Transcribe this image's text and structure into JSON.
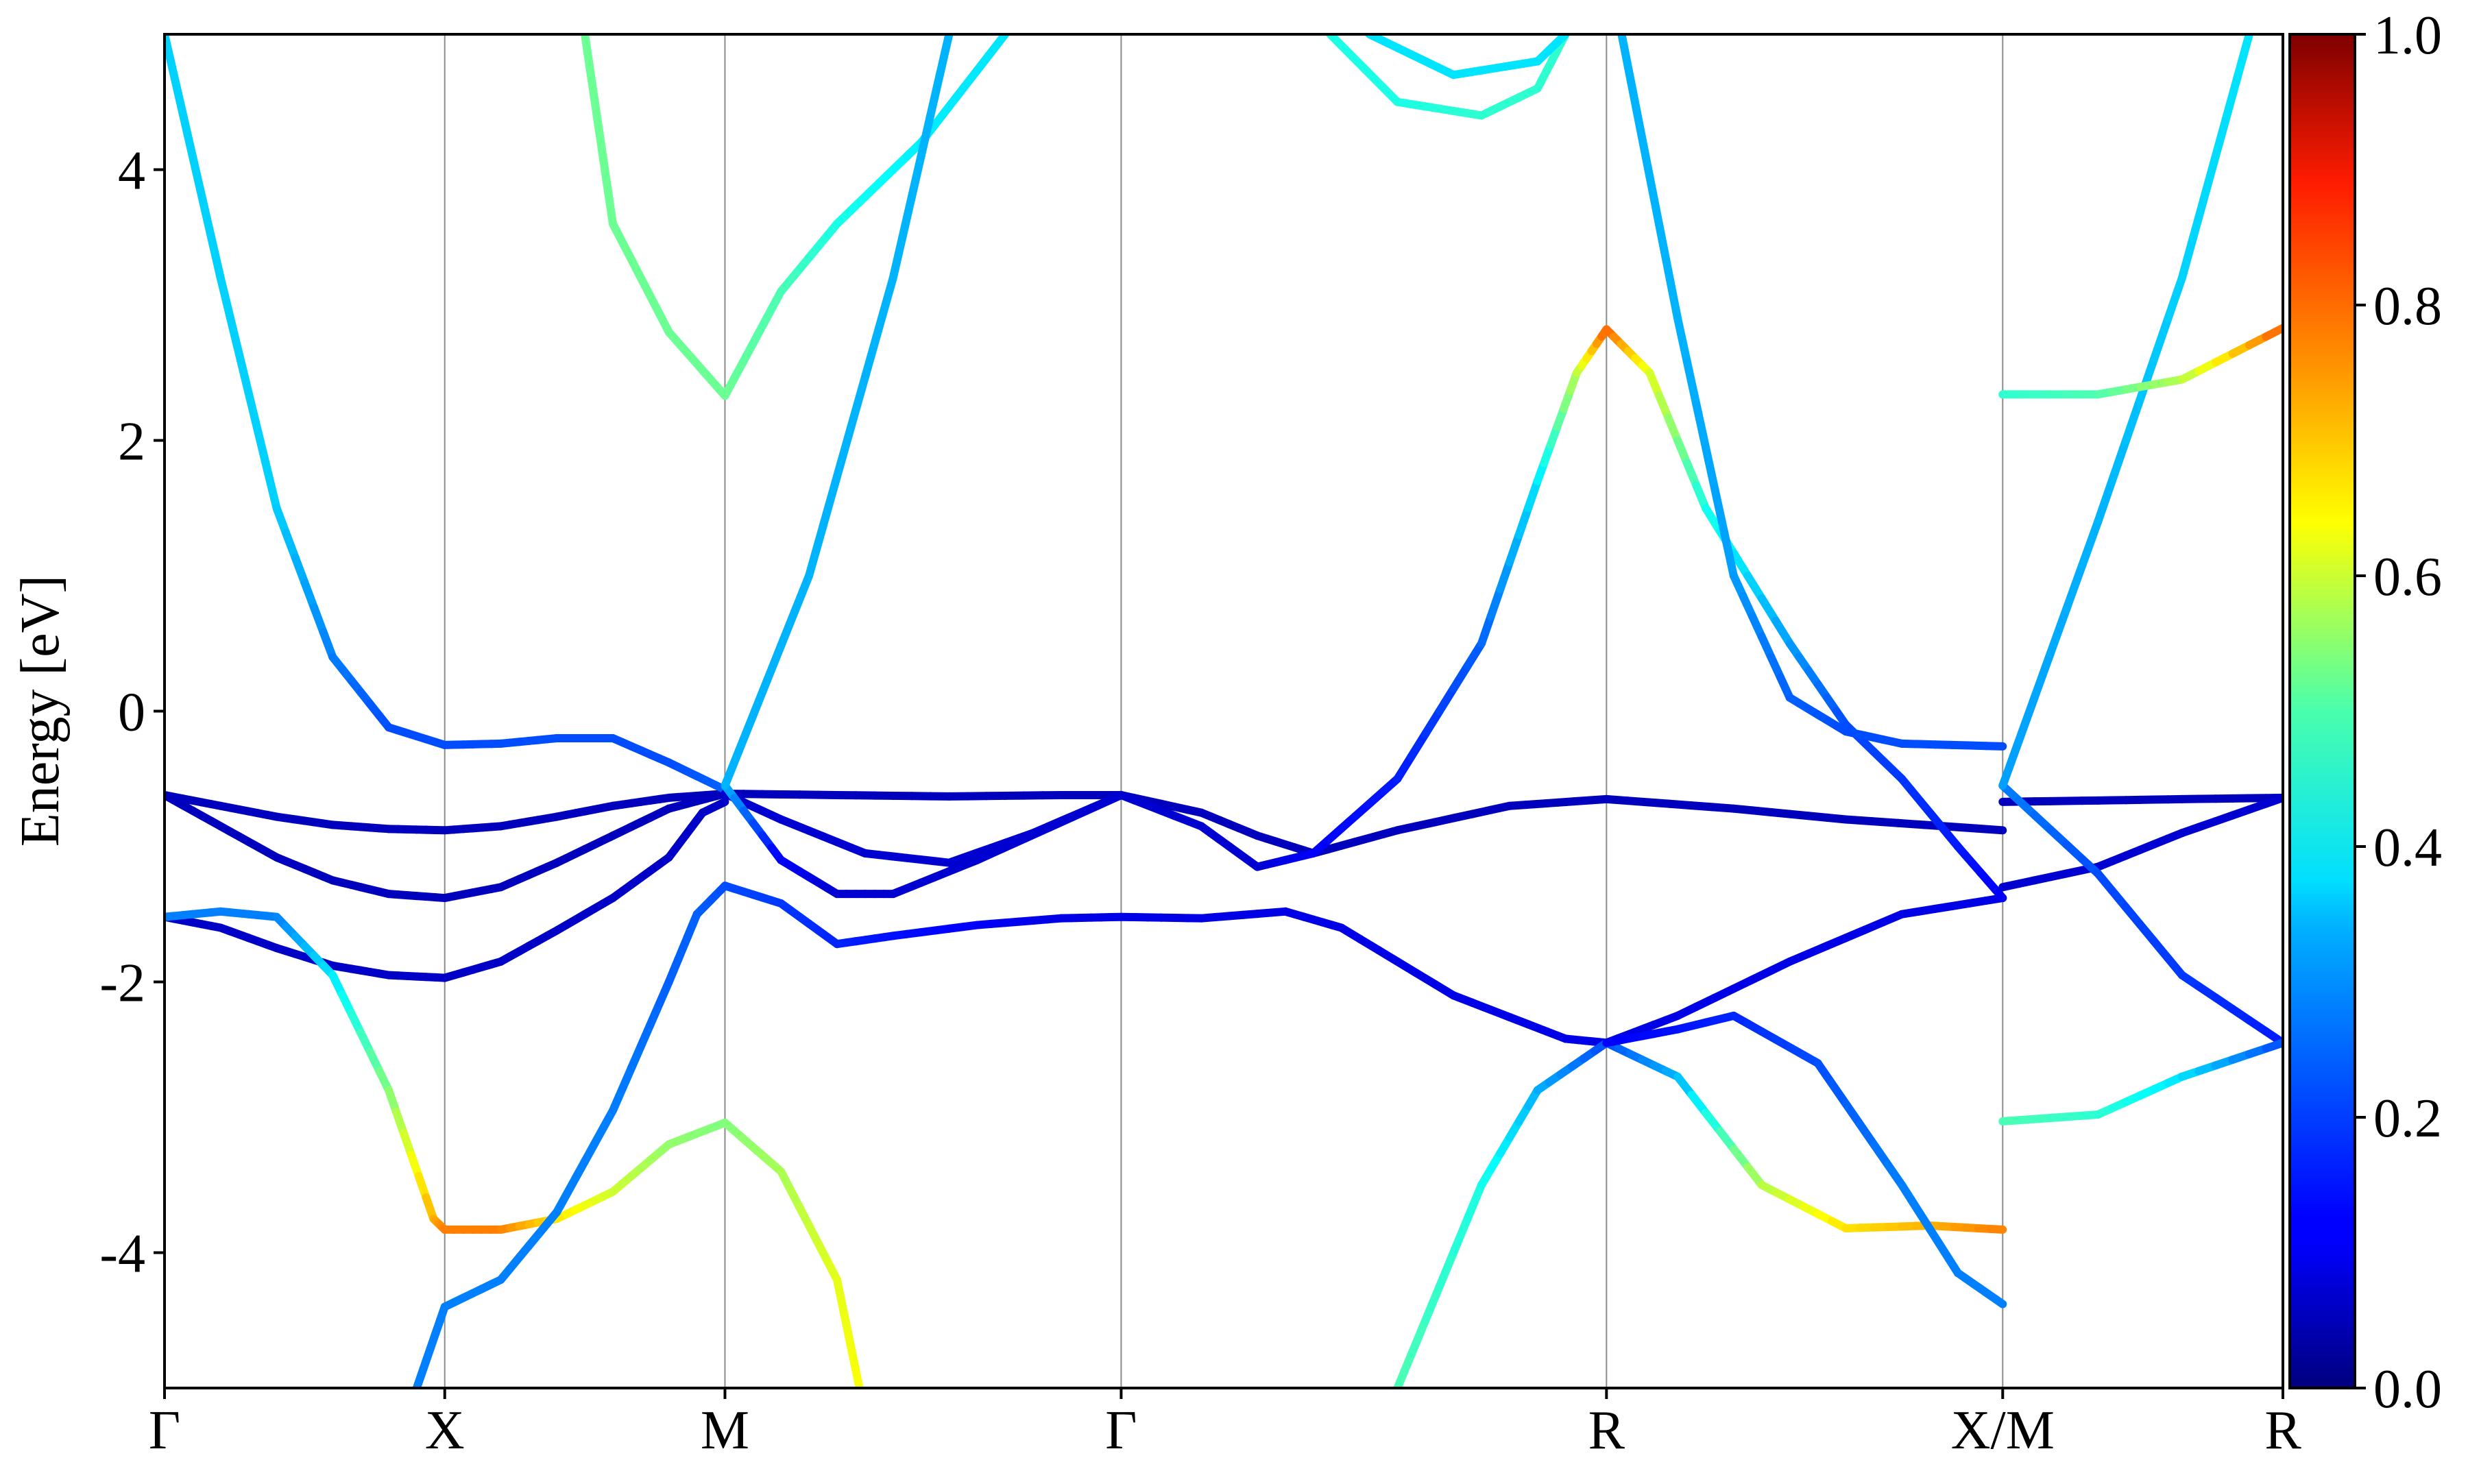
{
  "chart_data": {
    "type": "line",
    "title": "",
    "ylabel": "Energy [eV]",
    "xlabel": "",
    "ylim": [
      -5,
      5
    ],
    "k_path": [
      "Γ",
      "X",
      "M",
      "Γ",
      "R",
      "X/M",
      "R"
    ],
    "k_path_positions": [
      0,
      0.5,
      1.0,
      1.707,
      2.573,
      3.28,
      3.78
    ],
    "y_ticks": [
      -4,
      -2,
      0,
      2,
      4
    ],
    "y_tick_labels": [
      "-4",
      "-2",
      "0",
      "2",
      "4"
    ],
    "grid": "vertical lines at high-symmetry points",
    "colorbar": {
      "colormap": "jet",
      "range": [
        0.0,
        1.0
      ],
      "ticks": [
        0.0,
        0.2,
        0.4,
        0.6,
        0.8,
        1.0
      ],
      "tick_labels": [
        "0.0",
        "0.2",
        "0.4",
        "0.6",
        "0.8",
        "1.0"
      ],
      "placement": "right"
    },
    "series": [
      {
        "points": [
          [
            0,
            -0.62,
            0.06
          ],
          [
            0.1,
            -0.7,
            0.06
          ],
          [
            0.2,
            -0.78,
            0.06
          ],
          [
            0.3,
            -0.84,
            0.06
          ],
          [
            0.4,
            -0.87,
            0.06
          ],
          [
            0.5,
            -0.88,
            0.06
          ],
          [
            0.6,
            -0.85,
            0.06
          ],
          [
            0.7,
            -0.78,
            0.06
          ],
          [
            0.8,
            -0.7,
            0.06
          ],
          [
            0.9,
            -0.64,
            0.06
          ],
          [
            1.0,
            -0.61,
            0.06
          ]
        ]
      },
      {
        "points": [
          [
            0,
            -0.62,
            0.06
          ],
          [
            0.1,
            -0.85,
            0.06
          ],
          [
            0.2,
            -1.08,
            0.06
          ],
          [
            0.3,
            -1.25,
            0.06
          ],
          [
            0.4,
            -1.35,
            0.06
          ],
          [
            0.5,
            -1.38,
            0.06
          ],
          [
            0.6,
            -1.3,
            0.06
          ],
          [
            0.7,
            -1.12,
            0.06
          ],
          [
            0.8,
            -0.92,
            0.06
          ],
          [
            0.9,
            -0.72,
            0.06
          ],
          [
            1.0,
            -0.61,
            0.06
          ]
        ]
      },
      {
        "points": [
          [
            0,
            -1.52,
            0.07
          ],
          [
            0.1,
            -1.6,
            0.07
          ],
          [
            0.2,
            -1.75,
            0.07
          ],
          [
            0.3,
            -1.88,
            0.07
          ],
          [
            0.4,
            -1.95,
            0.07
          ],
          [
            0.5,
            -1.97,
            0.07
          ],
          [
            0.6,
            -1.85,
            0.07
          ],
          [
            0.7,
            -1.62,
            0.07
          ],
          [
            0.8,
            -1.38,
            0.07
          ],
          [
            0.9,
            -1.08,
            0.07
          ],
          [
            0.96,
            -0.75,
            0.07
          ],
          [
            1.0,
            -0.67,
            0.07
          ]
        ]
      },
      {
        "points": [
          [
            0,
            -1.52,
            0.25
          ],
          [
            0.1,
            -1.48,
            0.25
          ],
          [
            0.2,
            -1.52,
            0.25
          ],
          [
            0.3,
            -1.95,
            0.35
          ],
          [
            0.4,
            -2.8,
            0.5
          ],
          [
            0.48,
            -3.75,
            0.7
          ],
          [
            0.5,
            -3.83,
            0.75
          ],
          [
            0.6,
            -3.83,
            0.75
          ],
          [
            0.7,
            -3.75,
            0.65
          ],
          [
            0.8,
            -3.55,
            0.58
          ],
          [
            0.9,
            -3.2,
            0.52
          ],
          [
            1.0,
            -3.04,
            0.5
          ],
          [
            1.1,
            -3.4,
            0.54
          ],
          [
            1.2,
            -4.2,
            0.6
          ],
          [
            1.24,
            -5.0,
            0.62
          ]
        ]
      },
      {
        "points": [
          [
            0,
            5.0,
            0.33
          ],
          [
            0.1,
            3.2,
            0.33
          ],
          [
            0.2,
            1.5,
            0.33
          ],
          [
            0.3,
            0.4,
            0.25
          ],
          [
            0.4,
            -0.12,
            0.2
          ],
          [
            0.5,
            -0.25,
            0.2
          ],
          [
            0.6,
            -0.24,
            0.2
          ],
          [
            0.7,
            -0.2,
            0.2
          ],
          [
            0.8,
            -0.2,
            0.2
          ],
          [
            0.9,
            -0.38,
            0.2
          ],
          [
            1.0,
            -0.58,
            0.22
          ]
        ]
      },
      {
        "points": [
          [
            0.45,
            -5.0,
            0.25
          ],
          [
            0.5,
            -4.4,
            0.25
          ],
          [
            0.6,
            -4.2,
            0.25
          ],
          [
            0.7,
            -3.7,
            0.25
          ],
          [
            0.8,
            -2.95,
            0.25
          ],
          [
            0.9,
            -2.0,
            0.22
          ],
          [
            0.95,
            -1.5,
            0.22
          ],
          [
            1.0,
            -1.29,
            0.2
          ],
          [
            1.1,
            -1.42,
            0.18
          ],
          [
            1.2,
            -1.72,
            0.16
          ],
          [
            1.3,
            -1.66,
            0.14
          ],
          [
            1.45,
            -1.58,
            0.12
          ],
          [
            1.6,
            -1.53,
            0.1
          ],
          [
            1.707,
            -1.52,
            0.1
          ],
          [
            1.85,
            -1.53,
            0.1
          ],
          [
            2.0,
            -1.48,
            0.1
          ],
          [
            2.1,
            -1.6,
            0.1
          ],
          [
            2.3,
            -2.1,
            0.1
          ],
          [
            2.5,
            -2.42,
            0.1
          ],
          [
            2.573,
            -2.45,
            0.1
          ],
          [
            2.7,
            -2.25,
            0.1
          ],
          [
            2.9,
            -1.85,
            0.1
          ],
          [
            3.1,
            -1.5,
            0.1
          ],
          [
            3.28,
            -1.38,
            0.1
          ]
        ]
      },
      {
        "points": [
          [
            1.0,
            -0.61,
            0.06
          ],
          [
            1.2,
            -0.62,
            0.06
          ],
          [
            1.4,
            -0.63,
            0.06
          ],
          [
            1.6,
            -0.62,
            0.06
          ],
          [
            1.707,
            -0.62,
            0.06
          ],
          [
            1.85,
            -0.75,
            0.06
          ],
          [
            1.95,
            -0.92,
            0.06
          ],
          [
            2.05,
            -1.05,
            0.06
          ],
          [
            2.2,
            -0.88,
            0.06
          ],
          [
            2.4,
            -0.7,
            0.06
          ],
          [
            2.573,
            -0.65,
            0.06
          ],
          [
            2.8,
            -0.72,
            0.06
          ],
          [
            3.0,
            -0.8,
            0.06
          ],
          [
            3.28,
            -0.88,
            0.06
          ]
        ]
      },
      {
        "points": [
          [
            1.0,
            -0.61,
            0.08
          ],
          [
            1.1,
            -0.8,
            0.08
          ],
          [
            1.25,
            -1.05,
            0.08
          ],
          [
            1.4,
            -1.12,
            0.08
          ],
          [
            1.55,
            -0.9,
            0.08
          ],
          [
            1.707,
            -0.62,
            0.08
          ],
          [
            1.85,
            -0.85,
            0.08
          ],
          [
            1.95,
            -1.15,
            0.08
          ],
          [
            2.05,
            -1.05,
            0.12
          ],
          [
            2.2,
            -0.5,
            0.15
          ],
          [
            2.35,
            0.5,
            0.22
          ],
          [
            2.45,
            1.7,
            0.35
          ],
          [
            2.52,
            2.5,
            0.55
          ],
          [
            2.573,
            2.82,
            0.78
          ],
          [
            2.65,
            2.5,
            0.6
          ],
          [
            2.75,
            1.5,
            0.4
          ],
          [
            2.9,
            0.5,
            0.28
          ],
          [
            3.0,
            -0.1,
            0.2
          ],
          [
            3.1,
            -0.5,
            0.18
          ],
          [
            3.2,
            -1.0,
            0.15
          ],
          [
            3.28,
            -1.38,
            0.12
          ]
        ]
      },
      {
        "points": [
          [
            1.0,
            -0.55,
            0.3
          ],
          [
            1.1,
            -1.1,
            0.12
          ],
          [
            1.2,
            -1.35,
            0.08
          ],
          [
            1.3,
            -1.35,
            0.08
          ],
          [
            1.45,
            -1.1,
            0.08
          ],
          [
            1.707,
            -0.62,
            0.08
          ]
        ]
      },
      {
        "points": [
          [
            1.0,
            2.33,
            0.48
          ],
          [
            1.1,
            3.1,
            0.45
          ],
          [
            1.2,
            3.6,
            0.4
          ],
          [
            1.35,
            4.2,
            0.36
          ],
          [
            1.5,
            5.0,
            0.35
          ]
        ]
      },
      {
        "points": [
          [
            1.0,
            -0.55,
            0.3
          ],
          [
            1.15,
            1.0,
            0.3
          ],
          [
            1.3,
            3.2,
            0.3
          ],
          [
            1.4,
            5.0,
            0.3
          ]
        ]
      },
      {
        "points": [
          [
            0.75,
            5.0,
            0.48
          ],
          [
            0.8,
            3.6,
            0.48
          ],
          [
            0.9,
            2.8,
            0.48
          ],
          [
            1.0,
            2.33,
            0.48
          ]
        ]
      },
      {
        "points": [
          [
            2.2,
            -5.0,
            0.45
          ],
          [
            2.35,
            -3.5,
            0.4
          ],
          [
            2.45,
            -2.8,
            0.3
          ],
          [
            2.573,
            -2.45,
            0.2
          ],
          [
            2.7,
            -2.7,
            0.3
          ],
          [
            2.85,
            -3.5,
            0.55
          ],
          [
            3.0,
            -3.82,
            0.65
          ],
          [
            3.15,
            -3.8,
            0.7
          ],
          [
            3.28,
            -3.83,
            0.75
          ]
        ]
      },
      {
        "points": [
          [
            2.573,
            -2.45,
            0.12
          ],
          [
            2.7,
            -2.35,
            0.14
          ],
          [
            2.8,
            -2.25,
            0.16
          ],
          [
            2.95,
            -2.6,
            0.2
          ],
          [
            3.1,
            -3.5,
            0.25
          ],
          [
            3.2,
            -4.15,
            0.25
          ],
          [
            3.28,
            -4.38,
            0.25
          ]
        ]
      },
      {
        "points": [
          [
            2.6,
            5.0,
            0.3
          ],
          [
            2.7,
            2.9,
            0.3
          ],
          [
            2.8,
            1.0,
            0.28
          ],
          [
            2.9,
            0.1,
            0.22
          ],
          [
            3.0,
            -0.15,
            0.2
          ],
          [
            3.1,
            -0.24,
            0.2
          ],
          [
            3.28,
            -0.26,
            0.2
          ]
        ]
      },
      {
        "points": [
          [
            2.08,
            5.0,
            0.4
          ],
          [
            2.2,
            4.5,
            0.4
          ],
          [
            2.35,
            4.4,
            0.42
          ],
          [
            2.45,
            4.6,
            0.42
          ],
          [
            2.5,
            5.0,
            0.42
          ]
        ]
      },
      {
        "points": [
          [
            2.15,
            5.0,
            0.35
          ],
          [
            2.3,
            4.7,
            0.35
          ],
          [
            2.45,
            4.8,
            0.35
          ],
          [
            2.5,
            5.0,
            0.35
          ]
        ]
      },
      {
        "points": [
          [
            3.28,
            -0.67,
            0.06
          ],
          [
            3.45,
            -0.66,
            0.06
          ],
          [
            3.6,
            -0.65,
            0.06
          ],
          [
            3.78,
            -0.64,
            0.06
          ]
        ]
      },
      {
        "points": [
          [
            3.28,
            -1.3,
            0.08
          ],
          [
            3.45,
            -1.15,
            0.08
          ],
          [
            3.6,
            -0.9,
            0.08
          ],
          [
            3.78,
            -0.64,
            0.08
          ]
        ]
      },
      {
        "points": [
          [
            3.28,
            -0.55,
            0.25
          ],
          [
            3.45,
            -1.2,
            0.2
          ],
          [
            3.6,
            -1.95,
            0.18
          ],
          [
            3.78,
            -2.45,
            0.15
          ]
        ]
      },
      {
        "points": [
          [
            3.28,
            -0.55,
            0.28
          ],
          [
            3.45,
            1.4,
            0.3
          ],
          [
            3.6,
            3.2,
            0.33
          ],
          [
            3.72,
            5.0,
            0.35
          ]
        ]
      },
      {
        "points": [
          [
            3.28,
            2.34,
            0.42
          ],
          [
            3.45,
            2.34,
            0.45
          ],
          [
            3.6,
            2.45,
            0.55
          ],
          [
            3.78,
            2.83,
            0.78
          ]
        ]
      },
      {
        "points": [
          [
            3.28,
            -3.03,
            0.45
          ],
          [
            3.45,
            -2.98,
            0.42
          ],
          [
            3.6,
            -2.7,
            0.35
          ],
          [
            3.78,
            -2.45,
            0.2
          ]
        ]
      }
    ]
  }
}
